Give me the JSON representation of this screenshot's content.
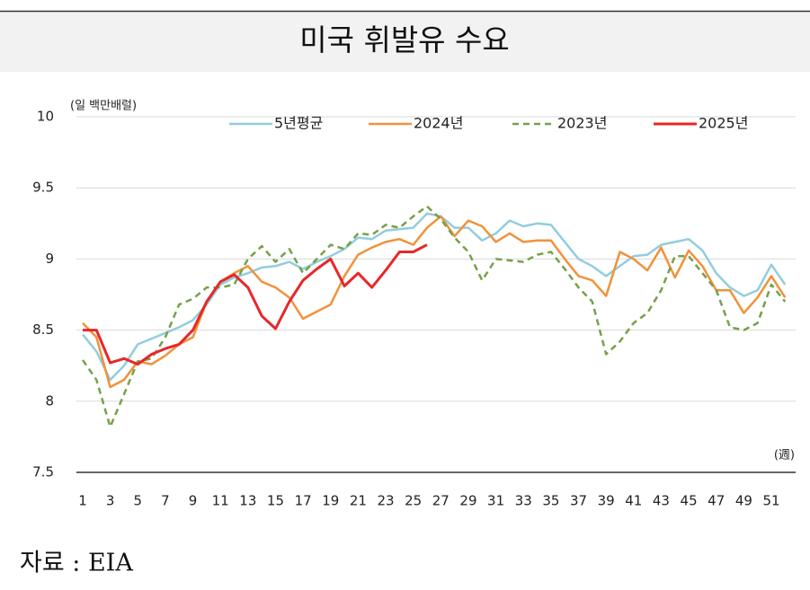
{
  "chart_data": {
    "type": "line",
    "title": "미국 휘발유 수요",
    "y_unit": "(일 백만배럴)",
    "x_unit": "(週)",
    "source": "자료 : EIA",
    "categories": [
      "1",
      null,
      "3",
      null,
      "5",
      null,
      "7",
      null,
      "9",
      null,
      "11",
      null,
      "13",
      null,
      "15",
      null,
      "17",
      null,
      "19",
      null,
      "21",
      null,
      "23",
      null,
      "25",
      null,
      "27",
      null,
      "29",
      null,
      "31",
      null,
      "33",
      null,
      "35",
      null,
      "37",
      null,
      "39",
      null,
      "41",
      null,
      "43",
      null,
      "45",
      null,
      "47",
      null,
      "49",
      null,
      "51",
      null
    ],
    "ylim": [
      7.5,
      10
    ],
    "yticks": [
      7.5,
      8,
      8.5,
      9,
      9.5,
      10
    ],
    "grid": true,
    "series": [
      {
        "name": "5년평균",
        "color": "#93cddd",
        "dash": false,
        "values": [
          8.47,
          8.35,
          8.15,
          8.25,
          8.4,
          8.44,
          8.48,
          8.52,
          8.57,
          8.68,
          8.82,
          8.87,
          8.9,
          8.94,
          8.95,
          8.98,
          8.93,
          8.98,
          9.02,
          9.07,
          9.15,
          9.14,
          9.2,
          9.21,
          9.22,
          9.32,
          9.3,
          9.22,
          9.22,
          9.13,
          9.18,
          9.27,
          9.23,
          9.25,
          9.24,
          9.12,
          9.0,
          8.95,
          8.88,
          8.95,
          9.02,
          9.03,
          9.1,
          9.12,
          9.14,
          9.06,
          8.9,
          8.8,
          8.74,
          8.78,
          8.96,
          8.82
        ]
      },
      {
        "name": "2024년",
        "color": "#f0923a",
        "dash": false,
        "values": [
          8.55,
          8.45,
          8.1,
          8.15,
          8.28,
          8.26,
          8.32,
          8.4,
          8.45,
          8.7,
          8.84,
          8.9,
          8.95,
          8.84,
          8.8,
          8.73,
          8.58,
          8.63,
          8.68,
          8.88,
          9.03,
          9.08,
          9.12,
          9.14,
          9.1,
          9.22,
          9.3,
          9.16,
          9.27,
          9.23,
          9.12,
          9.18,
          9.12,
          9.13,
          9.13,
          9.0,
          8.88,
          8.85,
          8.74,
          9.05,
          9.0,
          8.92,
          9.08,
          8.87,
          9.06,
          8.95,
          8.78,
          8.78,
          8.62,
          8.73,
          8.88,
          8.73
        ]
      },
      {
        "name": "2023년",
        "color": "#77a04a",
        "dash": true,
        "values": [
          8.29,
          8.15,
          7.82,
          8.05,
          8.28,
          8.3,
          8.45,
          8.68,
          8.72,
          8.8,
          8.8,
          8.82,
          9.0,
          9.09,
          8.98,
          9.07,
          8.9,
          9.0,
          9.1,
          9.07,
          9.18,
          9.17,
          9.24,
          9.22,
          9.3,
          9.37,
          9.28,
          9.15,
          9.05,
          8.85,
          9.0,
          8.99,
          8.98,
          9.03,
          9.05,
          8.93,
          8.8,
          8.7,
          8.33,
          8.42,
          8.55,
          8.62,
          8.78,
          9.02,
          9.02,
          8.9,
          8.78,
          8.52,
          8.5,
          8.55,
          8.82,
          8.7
        ]
      },
      {
        "name": "2025년",
        "color": "#e8262a",
        "dash": false,
        "values": [
          8.5,
          8.5,
          8.27,
          8.3,
          8.26,
          8.33,
          8.37,
          8.4,
          8.5,
          8.7,
          8.84,
          8.89,
          8.8,
          8.6,
          8.51,
          8.7,
          8.85,
          8.93,
          9.0,
          8.81,
          8.9,
          8.8,
          8.92,
          9.05,
          9.05,
          9.1,
          null,
          null,
          null,
          null,
          null,
          null,
          null,
          null,
          null,
          null,
          null,
          null,
          null,
          null,
          null,
          null,
          null,
          null,
          null,
          null,
          null,
          null,
          null,
          null,
          null,
          null
        ]
      }
    ]
  }
}
